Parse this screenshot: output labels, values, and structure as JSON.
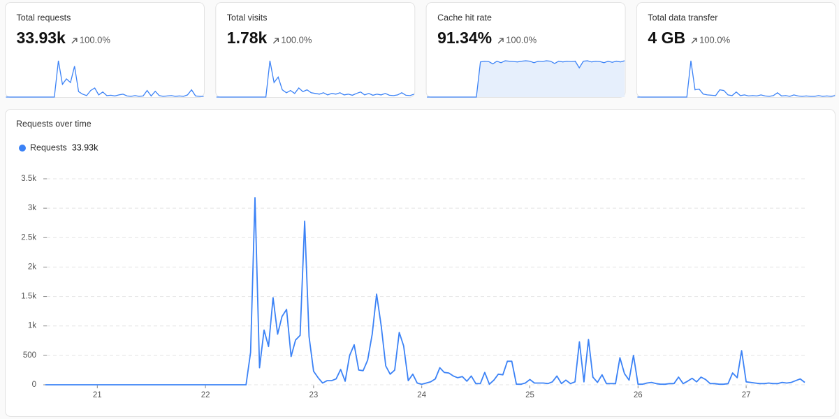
{
  "cards": [
    {
      "label": "Total requests",
      "value": "33.93k",
      "change": "100.0%",
      "color": "#3b82f6",
      "sparkline": [
        0,
        0,
        0,
        0,
        0,
        0,
        0,
        0,
        0,
        0,
        0,
        0,
        0,
        100,
        35,
        50,
        40,
        85,
        15,
        8,
        4,
        18,
        25,
        6,
        14,
        4,
        5,
        3,
        6,
        8,
        3,
        2,
        4,
        2,
        3,
        18,
        3,
        16,
        4,
        2,
        3,
        4,
        2,
        3,
        2,
        6,
        20,
        3,
        2,
        2
      ]
    },
    {
      "label": "Total visits",
      "value": "1.78k",
      "change": "100.0%",
      "color": "#3b82f6",
      "sparkline": [
        0,
        0,
        0,
        0,
        0,
        0,
        0,
        0,
        0,
        0,
        0,
        0,
        0,
        100,
        40,
        55,
        20,
        12,
        18,
        10,
        25,
        15,
        20,
        12,
        10,
        8,
        12,
        6,
        10,
        8,
        12,
        6,
        8,
        5,
        10,
        14,
        6,
        10,
        5,
        8,
        6,
        10,
        5,
        4,
        6,
        12,
        5,
        4,
        8
      ]
    },
    {
      "label": "Cache hit rate",
      "value": "91.34%",
      "change": "100.0%",
      "color": "#3b82f6",
      "area_color": "#e6effc",
      "sparkline": [
        0,
        0,
        0,
        0,
        0,
        0,
        0,
        0,
        0,
        0,
        0,
        0,
        0,
        90,
        92,
        91,
        85,
        92,
        88,
        93,
        92,
        91,
        90,
        92,
        93,
        92,
        88,
        92,
        91,
        93,
        92,
        86,
        92,
        90,
        92,
        91,
        92,
        75,
        92,
        93,
        90,
        92,
        91,
        88,
        92,
        89,
        92,
        90,
        93
      ]
    },
    {
      "label": "Total data transfer",
      "value": "4 GB",
      "change": "100.0%",
      "color": "#3b82f6",
      "sparkline": [
        0,
        0,
        0,
        0,
        0,
        0,
        0,
        0,
        0,
        0,
        0,
        0,
        0,
        100,
        20,
        22,
        8,
        6,
        5,
        4,
        20,
        18,
        6,
        4,
        14,
        4,
        6,
        3,
        4,
        3,
        6,
        3,
        2,
        4,
        12,
        3,
        4,
        2,
        6,
        3,
        2,
        3,
        2,
        2,
        4,
        2,
        3,
        2,
        4
      ]
    }
  ],
  "chart_data": {
    "type": "line",
    "title": "Requests over time",
    "series": [
      {
        "name": "Requests",
        "total": "33.93k",
        "color": "#3b82f6",
        "values": [
          0,
          0,
          550,
          3180,
          290,
          930,
          650,
          1480,
          860,
          1160,
          1280,
          480,
          760,
          840,
          2780,
          820,
          230,
          120,
          30,
          70,
          70,
          100,
          260,
          60,
          500,
          680,
          250,
          240,
          420,
          860,
          1540,
          1000,
          320,
          180,
          250,
          890,
          660,
          70,
          180,
          30,
          10,
          30,
          50,
          100,
          290,
          210,
          200,
          150,
          120,
          140,
          60,
          150,
          20,
          20,
          210,
          10,
          80,
          180,
          170,
          400,
          400,
          10,
          10,
          30,
          90,
          30,
          30,
          30,
          20,
          50,
          150,
          20,
          80,
          20,
          50,
          730,
          50,
          770,
          130,
          40,
          170,
          20,
          20,
          20,
          460,
          190,
          80,
          500,
          10,
          10,
          30,
          40,
          20,
          10,
          10,
          20,
          20,
          130,
          20,
          60,
          110,
          50,
          130,
          90,
          20,
          20,
          10,
          10,
          20,
          200,
          120,
          580,
          50,
          40,
          30,
          20,
          20,
          30,
          20,
          20,
          40,
          30,
          40,
          70,
          100,
          40
        ]
      }
    ],
    "x": [
      20.52,
      22.375,
      22.417,
      22.458,
      22.5,
      22.542,
      22.583,
      22.625,
      22.667,
      22.708,
      22.75,
      22.792,
      22.833,
      22.875,
      22.917,
      22.958,
      23,
      23.042,
      23.083,
      23.125,
      23.167,
      23.208,
      23.25,
      23.292,
      23.333,
      23.375,
      23.417,
      23.458,
      23.5,
      23.542,
      23.583,
      23.625,
      23.667,
      23.708,
      23.75,
      23.792,
      23.833,
      23.875,
      23.917,
      23.958,
      24,
      24.042,
      24.083,
      24.125,
      24.167,
      24.208,
      24.25,
      24.292,
      24.333,
      24.375,
      24.417,
      24.458,
      24.5,
      24.542,
      24.583,
      24.625,
      24.667,
      24.708,
      24.75,
      24.792,
      24.833,
      24.875,
      24.917,
      24.958,
      25,
      25.042,
      25.083,
      25.125,
      25.167,
      25.208,
      25.25,
      25.292,
      25.333,
      25.375,
      25.417,
      25.458,
      25.5,
      25.542,
      25.583,
      25.625,
      25.667,
      25.708,
      25.75,
      25.792,
      25.833,
      25.875,
      25.917,
      25.958,
      26,
      26.042,
      26.083,
      26.125,
      26.167,
      26.208,
      26.25,
      26.292,
      26.333,
      26.375,
      26.417,
      26.458,
      26.5,
      26.542,
      26.583,
      26.625,
      26.667,
      26.708,
      26.75,
      26.792,
      26.833,
      26.875,
      26.917,
      26.958,
      27,
      27.042,
      27.083,
      27.125,
      27.167,
      27.208,
      27.25,
      27.292,
      27.333,
      27.375,
      27.417,
      27.458,
      27.5,
      27.542
    ],
    "xlim": [
      20.52,
      27.542
    ],
    "xticks": [
      21,
      22,
      23,
      24,
      25,
      26,
      27
    ],
    "ylim": [
      0,
      3500
    ],
    "yticks": [
      0,
      500,
      {
        "value": 1000,
        "label": "1k"
      },
      {
        "value": 1500,
        "label": "1.5k"
      },
      {
        "value": 2000,
        "label": "2k"
      },
      {
        "value": 2500,
        "label": "2.5k"
      },
      {
        "value": 3000,
        "label": "3k"
      },
      {
        "value": 3500,
        "label": "3.5k"
      }
    ],
    "grid": true,
    "legend": "top-left"
  }
}
